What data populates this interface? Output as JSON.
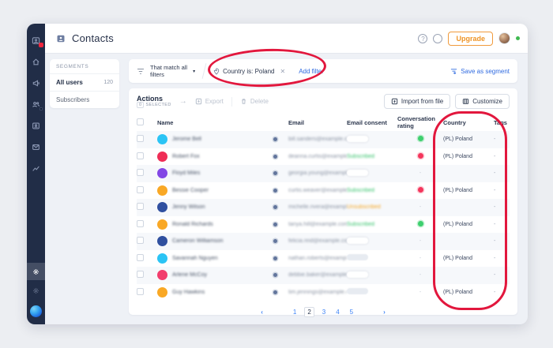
{
  "colors": {
    "annotation_red": "#e2173d",
    "accent_blue": "#2f6ae0",
    "upgrade_orange": "#ef9426",
    "rating_positive": "#3ecf6e",
    "rating_negative": "#f4365c",
    "sidebar_bg": "#212d47"
  },
  "sidebar": {
    "items": [
      "dashboard",
      "home",
      "campaigns",
      "contacts",
      "contact-card",
      "messages",
      "analytics"
    ],
    "bottom_items": [
      "settings",
      "settings-secondary",
      "brand-logo"
    ],
    "notification_badge": true
  },
  "header": {
    "title": "Contacts",
    "upgrade_label": "Upgrade",
    "help_label": "?"
  },
  "segments": {
    "header": "SEGMENTS",
    "items": [
      {
        "label": "All users",
        "count": "120",
        "active": true
      },
      {
        "label": "Subscribers",
        "count": "",
        "active": false
      }
    ]
  },
  "filter_bar": {
    "match_label": "That match all\nfilters",
    "caret": "▾",
    "chip": {
      "label": "Country is: Poland",
      "close": "✕"
    },
    "add_filter_label": "Add filter",
    "save_segment_label": "Save as segment"
  },
  "actions": {
    "title": "Actions",
    "selected_count": "0",
    "selected_label": "SELECTED",
    "arrow": "→",
    "export_label": "Export",
    "delete_label": "Delete",
    "import_label": "Import from file",
    "customize_label": "Customize"
  },
  "table": {
    "columns": [
      "Name",
      "Email",
      "Email consent",
      "Conversation rating",
      "Country",
      "Tags"
    ],
    "note": "names and emails appear blurred in the UI",
    "rows": [
      {
        "name": "Jerome Bell",
        "email": "bill.sanders@example.com",
        "avatar_color": "#2bc4f5",
        "consent": "pill-light",
        "rating": "positive",
        "country": "(PL) Poland",
        "tags": "-"
      },
      {
        "name": "Robert Fox",
        "email": "deanna.curtis@example.com",
        "avatar_color": "#ef2d56",
        "consent": "subscribed",
        "rating": "negative",
        "country": "(PL) Poland",
        "tags": "-"
      },
      {
        "name": "Floyd Miles",
        "email": "georgia.young@example.com",
        "avatar_color": "#8247e5",
        "consent": "pill-light",
        "rating": "none",
        "country": "",
        "tags": "-"
      },
      {
        "name": "Bessie Cooper",
        "email": "curtis.weaver@example.com",
        "avatar_color": "#f9a825",
        "consent": "subscribed",
        "rating": "negative",
        "country": "(PL) Poland",
        "tags": "-"
      },
      {
        "name": "Jenny Wilson",
        "email": "michelle.rivera@example.com",
        "avatar_color": "#3050a0",
        "consent": "unsubscribed",
        "rating": "none",
        "country": "",
        "tags": "-"
      },
      {
        "name": "Ronald Richards",
        "email": "tanya.hill@example.com",
        "avatar_color": "#f9a825",
        "consent": "subscribed",
        "rating": "positive",
        "country": "(PL) Poland",
        "tags": "-"
      },
      {
        "name": "Cameron Williamson",
        "email": "felicia.reid@example.com",
        "avatar_color": "#30509f",
        "consent": "pill-light",
        "rating": "none",
        "country": "",
        "tags": "-"
      },
      {
        "name": "Savannah Nguyen",
        "email": "nathan.roberts@example.com",
        "avatar_color": "#2bc4f5",
        "consent": "pill-gray",
        "rating": "none",
        "country": "(PL) Poland",
        "tags": "-"
      },
      {
        "name": "Arlene McCoy",
        "email": "debbie.baker@example.com",
        "avatar_color": "#f23d6d",
        "consent": "pill-light",
        "rating": "none",
        "country": "",
        "tags": "-"
      },
      {
        "name": "Guy Hawkins",
        "email": "tim.jennings@example.com",
        "avatar_color": "#f9a825",
        "consent": "pill-gray",
        "rating": "none",
        "country": "(PL) Poland",
        "tags": "-"
      }
    ],
    "consent_labels": {
      "subscribed": "Subscribed",
      "unsubscribed": "Unsubscribed"
    }
  },
  "pagination": {
    "pages": [
      "1",
      "2",
      "3",
      "4",
      "5"
    ],
    "current": "2",
    "prev": "‹",
    "next": "›"
  },
  "annotations": [
    {
      "target": "filter-chip-country-poland",
      "shape": "ellipse"
    },
    {
      "target": "country-column",
      "shape": "rounded-rect"
    }
  ]
}
